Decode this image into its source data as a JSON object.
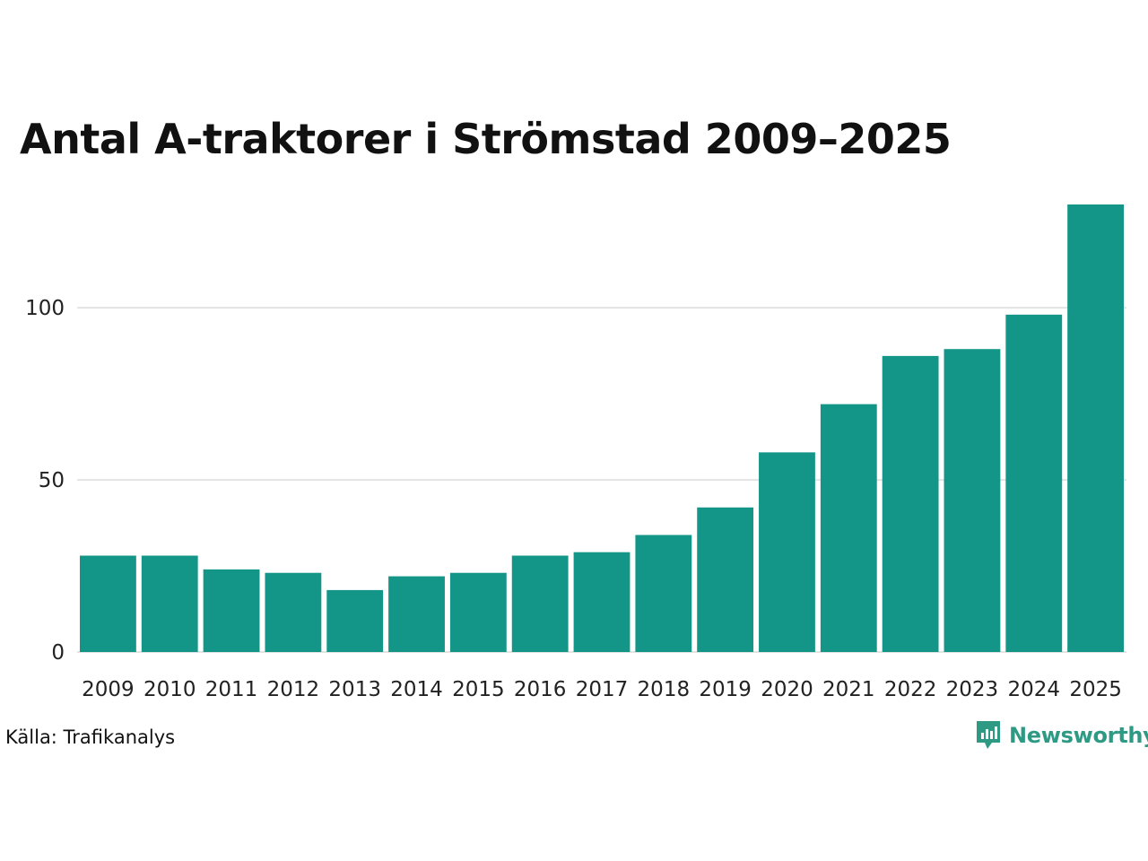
{
  "chart_data": {
    "type": "bar",
    "title": "Antal A-traktorer i Strömstad 2009–2025",
    "categories": [
      "2009",
      "2010",
      "2011",
      "2012",
      "2013",
      "2014",
      "2015",
      "2016",
      "2017",
      "2018",
      "2019",
      "2020",
      "2021",
      "2022",
      "2023",
      "2024",
      "2025"
    ],
    "values": [
      28,
      28,
      24,
      23,
      18,
      22,
      23,
      28,
      29,
      34,
      42,
      58,
      72,
      86,
      88,
      98,
      130
    ],
    "xlabel": "",
    "ylabel": "",
    "ylim": [
      0,
      130
    ],
    "yticks": [
      0,
      50,
      100
    ],
    "grid": true,
    "bar_color": "#139688",
    "grid_color": "#e3e3e3"
  },
  "footer": {
    "source": "Källa: Trafikanalys",
    "brand": "Newsworthy",
    "brand_color": "#2e9a84",
    "brand_icon": "bar-chart-speech-bubble-icon"
  }
}
